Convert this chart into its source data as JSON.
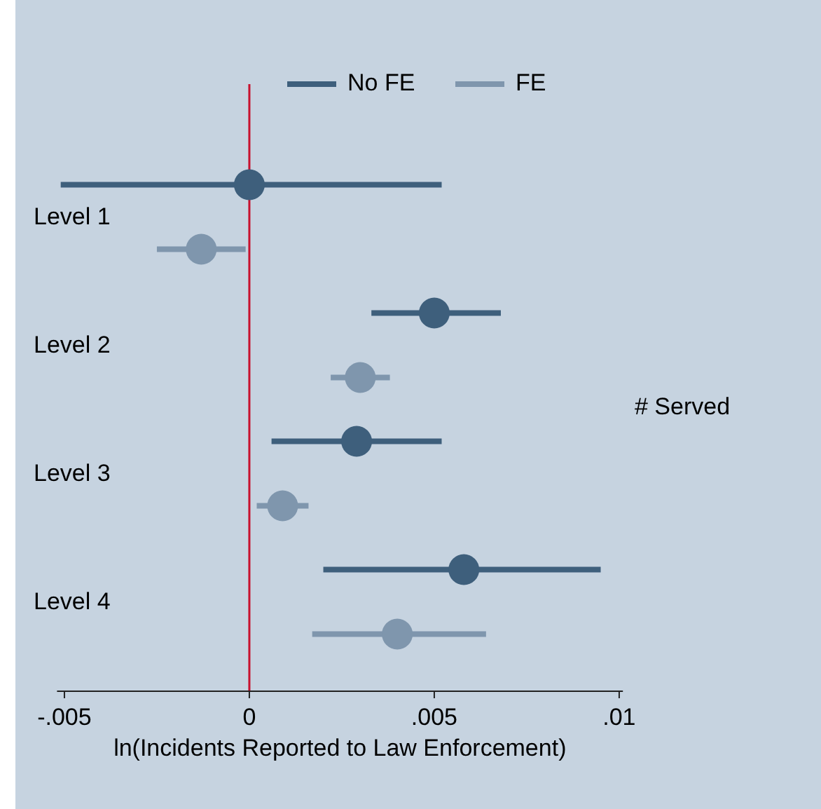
{
  "chart_data": {
    "type": "scatter",
    "orientation": "horizontal",
    "categories": [
      "Level 1",
      "Level 2",
      "Level 3",
      "Level 4"
    ],
    "series": [
      {
        "name": "No FE",
        "color": "#3e5f7c",
        "values": [
          0,
          0.005,
          0.0029,
          0.0058
        ],
        "errors": [
          [
            -0.0051,
            0.0052
          ],
          [
            0.0033,
            0.0068
          ],
          [
            0.0006,
            0.0052
          ],
          [
            0.002,
            0.0095
          ]
        ]
      },
      {
        "name": "FE",
        "color": "#7f96ad",
        "values": [
          -0.0013,
          0.003,
          0.0009,
          0.004
        ],
        "errors": [
          [
            -0.0025,
            -0.0001
          ],
          [
            0.0022,
            0.0038
          ],
          [
            0.0002,
            0.0016
          ],
          [
            0.0017,
            0.0064
          ]
        ]
      }
    ],
    "xlabel": "ln(Incidents Reported to Law Enforcement)",
    "annotations": [
      "# Served"
    ],
    "xlim": [
      -0.0052,
      0.0101
    ],
    "xticks": [
      {
        "value": -0.005,
        "label": "-.005"
      },
      0,
      {
        "value": 0.005,
        "label": ".005"
      },
      {
        "value": 0.01,
        "label": ".01"
      }
    ],
    "ref_lines": [
      {
        "axis": "x",
        "value": 0,
        "color": "#c8102e"
      }
    ],
    "legend": "top",
    "marker": "circle",
    "grid": false
  }
}
